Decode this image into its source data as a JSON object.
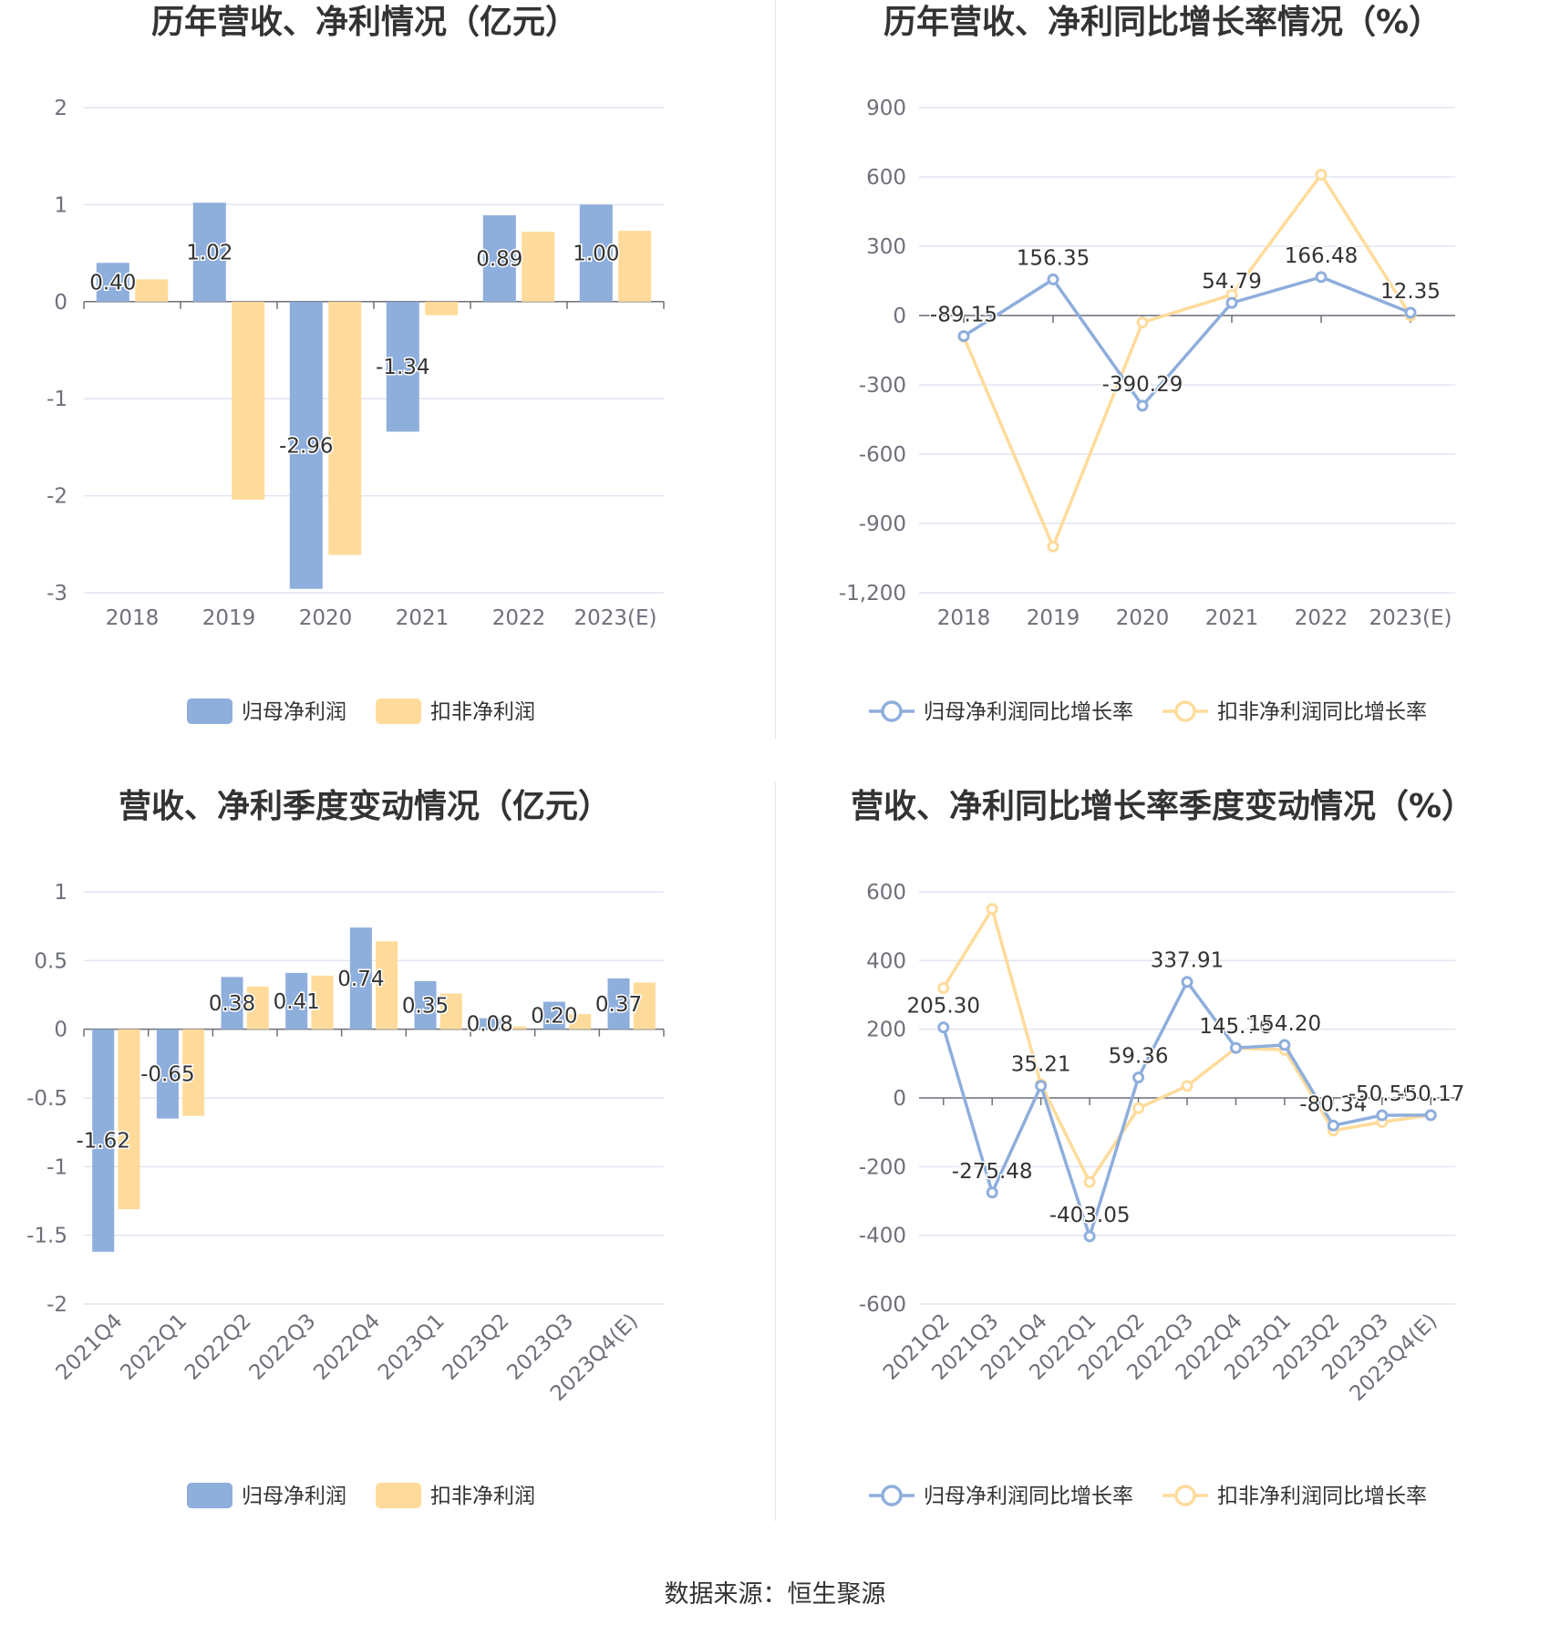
{
  "source": {
    "label": "数据来源：",
    "name": "恒生聚源"
  },
  "chart_data": [
    {
      "type": "bar",
      "title": "历年营收、净利情况（亿元）",
      "categories": [
        "2018",
        "2019",
        "2020",
        "2021",
        "2022",
        "2023(E)"
      ],
      "series": [
        {
          "name": "归母净利润",
          "values": [
            0.4,
            1.02,
            -2.96,
            -1.34,
            0.89,
            1.0
          ],
          "color": "#8eaedc",
          "labels": [
            "0.40",
            "1.02",
            "-2.96",
            "-1.34",
            "0.89",
            "1.00"
          ]
        },
        {
          "name": "扣非净利润",
          "values": [
            0.23,
            -2.04,
            -2.61,
            -0.14,
            0.72,
            0.73
          ],
          "color": "#ffdb9b"
        }
      ],
      "yticks": [
        "2",
        "1",
        "0",
        "-1",
        "-2",
        "-3"
      ],
      "ylim": [
        -3,
        2
      ]
    },
    {
      "type": "line",
      "title": "历年营收、净利同比增长率情况（%）",
      "categories": [
        "2018",
        "2019",
        "2020",
        "2021",
        "2022",
        "2023(E)"
      ],
      "series": [
        {
          "name": "归母净利润同比增长率",
          "values": [
            -89.15,
            156.35,
            -390.29,
            54.79,
            166.48,
            12.35
          ],
          "color": "#8eaedc",
          "labels": [
            "-89.15",
            "156.35",
            "-390.29",
            "54.79",
            "166.48",
            "12.35"
          ]
        },
        {
          "name": "扣非净利润同比增长率",
          "values": [
            -92,
            -1000,
            -30,
            90,
            610,
            0
          ],
          "color": "#ffdb9b"
        }
      ],
      "yticks": [
        "900",
        "600",
        "300",
        "0",
        "-300",
        "-600",
        "-900",
        "-1,200"
      ],
      "ylim": [
        -1200,
        900
      ]
    },
    {
      "type": "bar",
      "title": "营收、净利季度变动情况（亿元）",
      "categories": [
        "2021Q4",
        "2022Q1",
        "2022Q2",
        "2022Q3",
        "2022Q4",
        "2023Q1",
        "2023Q2",
        "2023Q3",
        "2023Q4(E)"
      ],
      "series": [
        {
          "name": "归母净利润",
          "values": [
            -1.62,
            -0.65,
            0.38,
            0.41,
            0.74,
            0.35,
            0.08,
            0.2,
            0.37
          ],
          "color": "#8eaedc",
          "labels": [
            "-1.62",
            "-0.65",
            "0.38",
            "0.41",
            "0.74",
            "0.35",
            "0.08",
            "0.20",
            "0.37"
          ]
        },
        {
          "name": "扣非净利润",
          "values": [
            -1.31,
            -0.63,
            0.31,
            0.39,
            0.64,
            0.26,
            0.02,
            0.11,
            0.34
          ],
          "color": "#ffdb9b"
        }
      ],
      "yticks": [
        "1",
        "0.5",
        "0",
        "-0.5",
        "-1",
        "-1.5",
        "-2"
      ],
      "ylim": [
        -2,
        1
      ]
    },
    {
      "type": "line",
      "title": "营收、净利同比增长率季度变动情况（%）",
      "categories": [
        "2021Q2",
        "2021Q3",
        "2021Q4",
        "2022Q1",
        "2022Q2",
        "2022Q3",
        "2022Q4",
        "2023Q1",
        "2023Q2",
        "2023Q3",
        "2023Q4(E)"
      ],
      "series": [
        {
          "name": "归母净利润同比增长率",
          "values": [
            205.3,
            -275.48,
            35.21,
            -403.05,
            59.36,
            337.91,
            145.76,
            154.2,
            -80.34,
            -50.5,
            -50.17
          ],
          "color": "#8eaedc",
          "labels": [
            "205.30",
            "-275.48",
            "35.21",
            "-403.05",
            "59.36",
            "337.91",
            "145.76",
            "154.20",
            "-80.34",
            "-50.50",
            "-50.17"
          ]
        },
        {
          "name": "扣非净利润同比增长率",
          "values": [
            320,
            550,
            40,
            -245,
            -30,
            35,
            145,
            140,
            -95,
            -70,
            -50
          ],
          "color": "#ffdb9b"
        }
      ],
      "yticks": [
        "600",
        "400",
        "200",
        "0",
        "-200",
        "-400",
        "-600"
      ],
      "ylim": [
        -600,
        600
      ]
    }
  ]
}
